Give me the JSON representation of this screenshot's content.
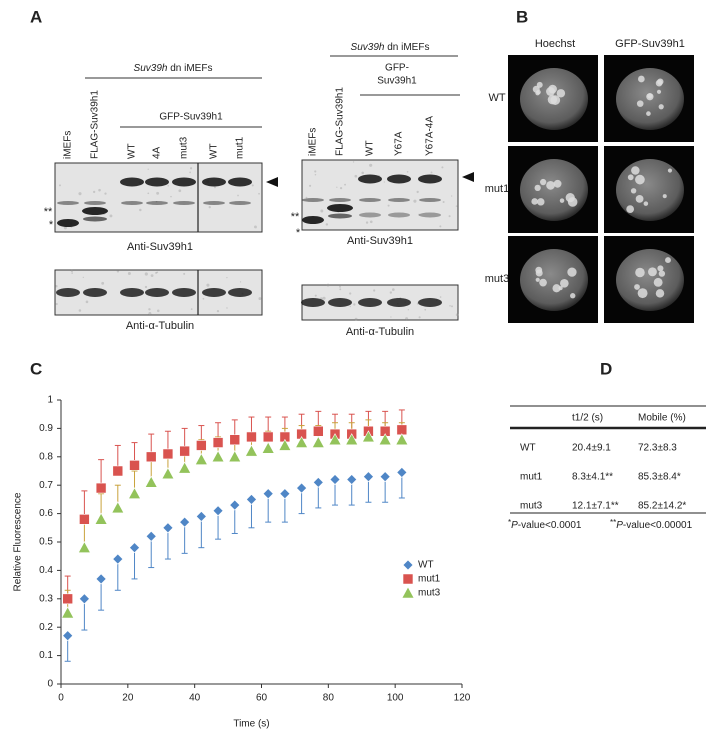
{
  "panel_labels": [
    "A",
    "B",
    "C",
    "D"
  ],
  "panel_a": {
    "left": {
      "header_italic": "Suv39h",
      "header_rest": " dn iMEFs",
      "group": [
        "GFP-Suv39h1"
      ],
      "lanes": [
        "iMEFs",
        "FLAG-Suv39h1",
        "WT",
        "4A",
        "mut3",
        "WT",
        "mut1"
      ],
      "band_marks": [
        "**",
        "*"
      ],
      "antibody_top": "Anti-Suv39h1",
      "antibody_bottom": "Anti-α-Tubulin"
    },
    "right": {
      "header_italic": "Suv39h",
      "header_rest": " dn iMEFs",
      "group": [
        "GFP-",
        "Suv39h1"
      ],
      "lanes": [
        "iMEFs",
        "FLAG-Suv39h1",
        "WT",
        "Y67A",
        "Y67A-4A"
      ],
      "band_marks": [
        "**",
        "*"
      ],
      "antibody_top": "Anti-Suv39h1",
      "antibody_bottom": "Anti-α-Tubulin"
    }
  },
  "panel_b": {
    "columns": [
      "Hoechst",
      "GFP-Suv39h1"
    ],
    "rows": [
      "WT",
      "mut1",
      "mut3"
    ]
  },
  "chart_data": {
    "type": "scatter",
    "xlabel": "Time (s)",
    "ylabel": "Relative Fluorescence",
    "x": [
      2,
      7,
      12,
      17,
      22,
      27,
      32,
      37,
      42,
      47,
      52,
      57,
      62,
      67,
      72,
      77,
      82,
      87,
      92,
      97,
      102
    ],
    "xlim": [
      0,
      120
    ],
    "xticks": [
      0,
      20,
      40,
      60,
      80,
      100,
      120
    ],
    "ylim": [
      0,
      1
    ],
    "yticks": [
      0,
      0.1,
      0.2,
      0.3,
      0.4,
      0.5,
      0.6,
      0.7,
      0.8,
      0.9,
      1
    ],
    "legend": "right",
    "series": [
      {
        "name": "WT",
        "color": "#4f86c6",
        "error_color": "#4f86c6",
        "marker": "diamond",
        "error_direction": "down",
        "values": [
          0.17,
          0.3,
          0.37,
          0.44,
          0.48,
          0.52,
          0.55,
          0.57,
          0.59,
          0.61,
          0.63,
          0.65,
          0.67,
          0.67,
          0.69,
          0.71,
          0.72,
          0.72,
          0.73,
          0.73,
          0.745
        ],
        "errors": [
          0.09,
          0.11,
          0.11,
          0.11,
          0.11,
          0.11,
          0.11,
          0.11,
          0.11,
          0.1,
          0.1,
          0.1,
          0.1,
          0.1,
          0.09,
          0.09,
          0.09,
          0.09,
          0.09,
          0.09,
          0.09
        ]
      },
      {
        "name": "mut1",
        "color": "#d9534f",
        "error_color": "#d9534f",
        "marker": "square",
        "error_direction": "up",
        "values": [
          0.3,
          0.58,
          0.69,
          0.75,
          0.77,
          0.8,
          0.81,
          0.82,
          0.84,
          0.85,
          0.86,
          0.87,
          0.87,
          0.87,
          0.88,
          0.89,
          0.88,
          0.88,
          0.89,
          0.89,
          0.895
        ],
        "errors": [
          0.08,
          0.1,
          0.1,
          0.09,
          0.08,
          0.08,
          0.08,
          0.08,
          0.07,
          0.07,
          0.07,
          0.07,
          0.07,
          0.07,
          0.07,
          0.07,
          0.07,
          0.07,
          0.07,
          0.07,
          0.07
        ]
      },
      {
        "name": "mut3",
        "color": "#93c35b",
        "error_color": "#c9a23c",
        "marker": "triangle",
        "error_direction": "up",
        "values": [
          0.25,
          0.48,
          0.58,
          0.62,
          0.67,
          0.71,
          0.74,
          0.76,
          0.79,
          0.8,
          0.8,
          0.82,
          0.83,
          0.84,
          0.85,
          0.85,
          0.86,
          0.86,
          0.87,
          0.86,
          0.86
        ],
        "errors": [
          0.08,
          0.09,
          0.09,
          0.08,
          0.08,
          0.08,
          0.07,
          0.07,
          0.07,
          0.07,
          0.07,
          0.06,
          0.06,
          0.06,
          0.06,
          0.06,
          0.06,
          0.06,
          0.06,
          0.06,
          0.06
        ]
      }
    ]
  },
  "table": {
    "header": [
      "t1/2 (s)",
      "Mobile (%)"
    ],
    "rows": [
      [
        "WT",
        "20.4±9.1",
        "72.3±8.3"
      ],
      [
        "mut1",
        "8.3±4.1**",
        "85.3±8.4*"
      ],
      [
        "mut3",
        "12.1±7.1**",
        "85.2±14.2*"
      ]
    ],
    "footnotes": [
      {
        "mark": "*",
        "italic": "P",
        "rest": "-value<0.0001"
      },
      {
        "mark": "**",
        "italic": "P",
        "rest": "-value<0.00001"
      }
    ]
  }
}
